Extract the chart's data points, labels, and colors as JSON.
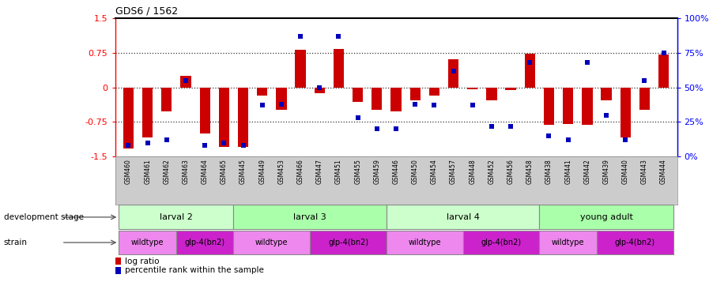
{
  "title": "GDS6 / 1562",
  "samples": [
    "GSM460",
    "GSM461",
    "GSM462",
    "GSM463",
    "GSM464",
    "GSM465",
    "GSM445",
    "GSM449",
    "GSM453",
    "GSM466",
    "GSM447",
    "GSM451",
    "GSM455",
    "GSM459",
    "GSM446",
    "GSM450",
    "GSM454",
    "GSM457",
    "GSM448",
    "GSM452",
    "GSM456",
    "GSM458",
    "GSM438",
    "GSM441",
    "GSM442",
    "GSM439",
    "GSM440",
    "GSM443",
    "GSM444"
  ],
  "log_ratio": [
    -1.32,
    -1.08,
    -0.52,
    0.26,
    -1.0,
    -1.3,
    -1.3,
    -0.18,
    -0.48,
    0.82,
    -0.12,
    0.83,
    -0.32,
    -0.48,
    -0.52,
    -0.28,
    -0.18,
    0.62,
    -0.04,
    -0.28,
    -0.06,
    0.73,
    -0.82,
    -0.8,
    -0.82,
    -0.28,
    -1.08,
    -0.48,
    0.72
  ],
  "percentile": [
    8,
    10,
    12,
    55,
    8,
    10,
    8,
    37,
    38,
    87,
    50,
    87,
    28,
    20,
    20,
    38,
    37,
    62,
    37,
    22,
    22,
    68,
    15,
    12,
    68,
    30,
    12,
    55,
    75
  ],
  "dev_stage_groups": [
    {
      "label": "larval 2",
      "start": 0,
      "end": 6,
      "color": "#ccffcc"
    },
    {
      "label": "larval 3",
      "start": 6,
      "end": 14,
      "color": "#aaffaa"
    },
    {
      "label": "larval 4",
      "start": 14,
      "end": 22,
      "color": "#ccffcc"
    },
    {
      "label": "young adult",
      "start": 22,
      "end": 29,
      "color": "#aaffaa"
    }
  ],
  "strain_groups": [
    {
      "label": "wildtype",
      "start": 0,
      "end": 3,
      "color": "#ff88ff"
    },
    {
      "label": "glp-4(bn2)",
      "start": 3,
      "end": 6,
      "color": "#ff44ff"
    },
    {
      "label": "wildtype",
      "start": 6,
      "end": 10,
      "color": "#ff88ff"
    },
    {
      "label": "glp-4(bn2)",
      "start": 10,
      "end": 14,
      "color": "#ff44ff"
    },
    {
      "label": "wildtype",
      "start": 14,
      "end": 18,
      "color": "#ff88ff"
    },
    {
      "label": "glp-4(bn2)",
      "start": 18,
      "end": 22,
      "color": "#ff44ff"
    },
    {
      "label": "wildtype",
      "start": 22,
      "end": 25,
      "color": "#ff88ff"
    },
    {
      "label": "glp-4(bn2)",
      "start": 25,
      "end": 29,
      "color": "#ff44ff"
    }
  ],
  "ylim_left": [
    -1.5,
    1.5
  ],
  "ylim_right": [
    0,
    100
  ],
  "yticks_left": [
    -1.5,
    -0.75,
    0.0,
    0.75,
    1.5
  ],
  "yticks_right": [
    0,
    25,
    50,
    75,
    100
  ],
  "bar_color": "#cc0000",
  "square_color": "#0000bb",
  "bar_width": 0.55,
  "hlines": [
    -0.75,
    0.0,
    0.75
  ],
  "xtick_bg": "#cccccc",
  "dev_label_colors": [
    "#ccffcc",
    "#aaffaa"
  ],
  "wildtype_color": "#ee88ee",
  "glp4_color": "#cc22cc"
}
